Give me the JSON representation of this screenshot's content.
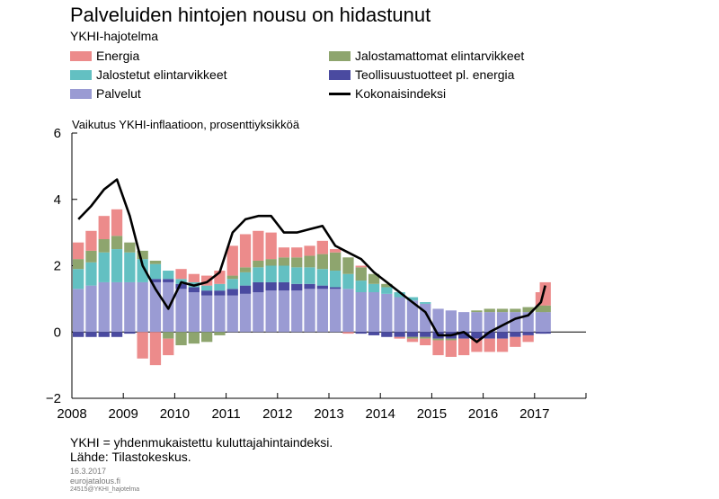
{
  "header": {
    "title": "Palveluiden hintojen nousu on hidastunut",
    "subtitle": "YKHI-hajotelma"
  },
  "footer": {
    "note": "YKHI = yhdenmukaistettu kuluttajahintaindeksi.",
    "source": "Lähde: Tilastokeskus.",
    "date": "16.3.2017",
    "site": "eurojatalous.fi",
    "code": "24515@YKHI_hajotelma"
  },
  "colors": {
    "Energia": "#ec8b8b",
    "Jalostamattomat elintarvikkeet": "#8ea56e",
    "Jalostetut elintarvikkeet": "#63c0c2",
    "Teollisuustuotteet pl. energia": "#4a4aa0",
    "Palvelut": "#9a9bd3",
    "Kokonaisindeksi": "#000000"
  },
  "chart_data": {
    "type": "bar",
    "stacked": true,
    "ylabel": "Vaikutus YKHI-inflaatioon, prosenttiyksikköä",
    "ylim": [
      -2,
      6
    ],
    "yticks": [
      -2,
      0,
      2,
      4,
      6
    ],
    "xticks": [
      "2008",
      "2009",
      "2010",
      "2011",
      "2012",
      "2013",
      "2014",
      "2015",
      "2016",
      "2017"
    ],
    "x": [
      "2008-01",
      "2008-04",
      "2008-07",
      "2008-10",
      "2009-01",
      "2009-04",
      "2009-07",
      "2009-10",
      "2010-01",
      "2010-04",
      "2010-07",
      "2010-10",
      "2011-01",
      "2011-04",
      "2011-07",
      "2011-10",
      "2012-01",
      "2012-04",
      "2012-07",
      "2012-10",
      "2013-01",
      "2013-04",
      "2013-07",
      "2013-10",
      "2014-01",
      "2014-04",
      "2014-07",
      "2014-10",
      "2015-01",
      "2015-04",
      "2015-07",
      "2015-10",
      "2016-01",
      "2016-04",
      "2016-07",
      "2016-10",
      "2017-01",
      "2017-02"
    ],
    "series": [
      {
        "name": "Palvelut",
        "values": [
          1.3,
          1.4,
          1.5,
          1.5,
          1.5,
          1.5,
          1.5,
          1.5,
          1.3,
          1.2,
          1.1,
          1.1,
          1.1,
          1.15,
          1.2,
          1.25,
          1.25,
          1.25,
          1.3,
          1.3,
          1.3,
          1.3,
          1.2,
          1.2,
          1.15,
          1.05,
          0.95,
          0.85,
          0.7,
          0.65,
          0.6,
          0.6,
          0.6,
          0.6,
          0.6,
          0.6,
          0.6,
          0.6
        ]
      },
      {
        "name": "Teollisuustuotteet pl. energia",
        "values": [
          -0.15,
          -0.15,
          -0.15,
          -0.15,
          -0.05,
          0.0,
          0.1,
          0.1,
          0.15,
          0.15,
          0.15,
          0.15,
          0.2,
          0.25,
          0.3,
          0.25,
          0.25,
          0.2,
          0.15,
          0.1,
          0.05,
          0.0,
          -0.05,
          -0.1,
          -0.15,
          -0.15,
          -0.15,
          -0.15,
          -0.2,
          -0.2,
          -0.2,
          -0.2,
          -0.2,
          -0.2,
          -0.15,
          -0.1,
          -0.05,
          -0.05
        ]
      },
      {
        "name": "Jalostetut elintarvikkeet",
        "values": [
          0.6,
          0.7,
          0.9,
          1.0,
          0.9,
          0.7,
          0.45,
          0.25,
          0.15,
          0.15,
          0.15,
          0.2,
          0.3,
          0.4,
          0.45,
          0.5,
          0.5,
          0.5,
          0.5,
          0.5,
          0.5,
          0.45,
          0.35,
          0.25,
          0.2,
          0.15,
          0.1,
          0.05,
          0.0,
          0.0,
          0.0,
          0.0,
          0.0,
          0.0,
          0.0,
          0.0,
          0.0,
          0.0
        ]
      },
      {
        "name": "Jalostamattomat elintarvikkeet",
        "values": [
          0.3,
          0.35,
          0.4,
          0.4,
          0.3,
          0.25,
          0.1,
          -0.2,
          -0.4,
          -0.35,
          -0.3,
          -0.1,
          0.1,
          0.15,
          0.2,
          0.2,
          0.25,
          0.3,
          0.35,
          0.45,
          0.55,
          0.5,
          0.4,
          0.3,
          0.1,
          0.0,
          -0.05,
          -0.05,
          -0.05,
          -0.05,
          0.0,
          0.05,
          0.1,
          0.1,
          0.1,
          0.15,
          0.2,
          0.2
        ]
      },
      {
        "name": "Energia",
        "values": [
          0.5,
          0.6,
          0.7,
          0.8,
          0.0,
          -0.8,
          -1.0,
          -0.5,
          0.3,
          0.25,
          0.3,
          0.4,
          0.9,
          1.0,
          0.9,
          0.8,
          0.3,
          0.3,
          0.3,
          0.4,
          0.1,
          -0.05,
          0.05,
          0.0,
          0.0,
          -0.05,
          -0.1,
          -0.2,
          -0.45,
          -0.5,
          -0.5,
          -0.4,
          -0.4,
          -0.4,
          -0.3,
          -0.2,
          0.4,
          0.7
        ]
      }
    ],
    "line": {
      "name": "Kokonaisindeksi",
      "values": [
        3.4,
        3.8,
        4.3,
        4.6,
        3.5,
        2.0,
        1.3,
        0.7,
        1.5,
        1.4,
        1.5,
        1.8,
        3.0,
        3.4,
        3.5,
        3.5,
        3.0,
        3.0,
        3.1,
        3.2,
        2.6,
        2.4,
        2.2,
        1.8,
        1.5,
        1.2,
        0.9,
        0.6,
        -0.1,
        -0.1,
        0.0,
        -0.3,
        0.0,
        0.2,
        0.4,
        0.5,
        0.9,
        1.4
      ]
    }
  }
}
